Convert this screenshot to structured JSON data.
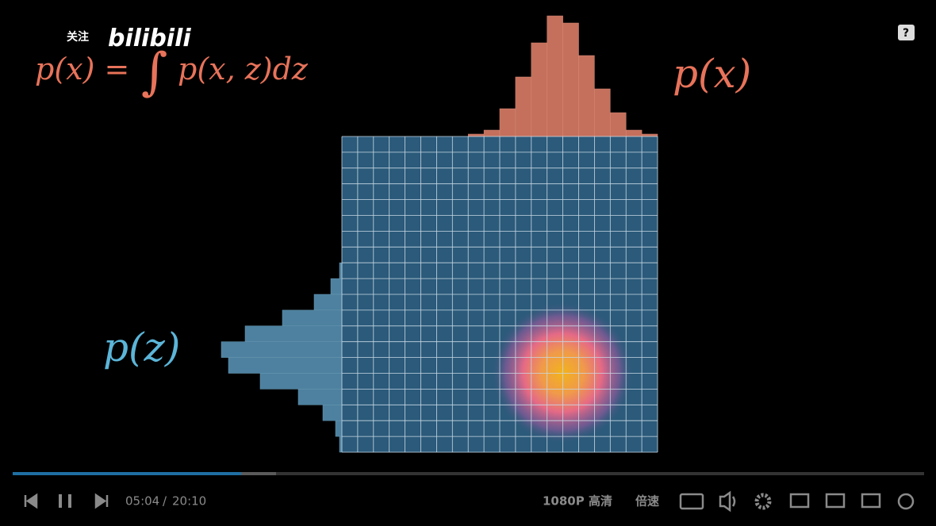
{
  "player": {
    "logo": "bilibili",
    "follow": "关注",
    "formula": {
      "lhs": "p(x) =",
      "integral": "∫",
      "rhs": "p(x, z)dz"
    },
    "label_x": "p(x)",
    "label_z": "p(z)",
    "time": {
      "current": "05:04",
      "separator": "/",
      "total": "20:10"
    },
    "quality": "1080P 高清",
    "speed": "倍速"
  }
}
